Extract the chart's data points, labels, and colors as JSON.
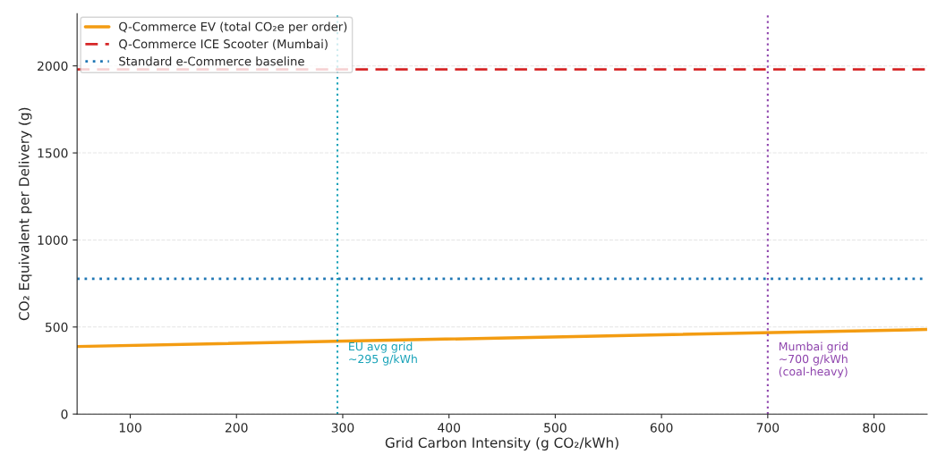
{
  "chart_data": {
    "type": "line",
    "xlabel": "Grid Carbon Intensity (g CO₂/kWh)",
    "ylabel": "CO₂ Equivalent per Delivery (g)",
    "x": [
      50,
      850
    ],
    "series": [
      {
        "name": "Q-Commerce EV (total CO₂e per order)",
        "color": "#f39c12",
        "values": [
          388,
          486
        ],
        "line_style": "solid"
      },
      {
        "name": "Q-Commerce ICE Scooter (Mumbai)",
        "color": "#d62728",
        "values": [
          1980,
          1980
        ],
        "line_style": "dashed"
      },
      {
        "name": "Standard e-Commerce baseline",
        "color": "#1f77b4",
        "values": [
          777,
          777
        ],
        "line_style": "dotted"
      }
    ],
    "ref_lines": [
      {
        "axis": "x",
        "value": 295,
        "label": "EU avg grid\n~295 g/kWh",
        "color": "#17a2b8",
        "line_style": "dotted"
      },
      {
        "axis": "x",
        "value": 700,
        "label": "Mumbai grid\n~700 g/kWh\n(coal-heavy)",
        "color": "#8e44ad",
        "line_style": "dotted"
      }
    ],
    "xlim": [
      50,
      850
    ],
    "xticks": [
      100,
      200,
      300,
      400,
      500,
      600,
      700,
      800
    ],
    "ylim": [
      0,
      2300
    ],
    "yticks": [
      0,
      500,
      1000,
      1500,
      2000
    ],
    "grid": "y",
    "legend": "top left",
    "marker": "none"
  }
}
